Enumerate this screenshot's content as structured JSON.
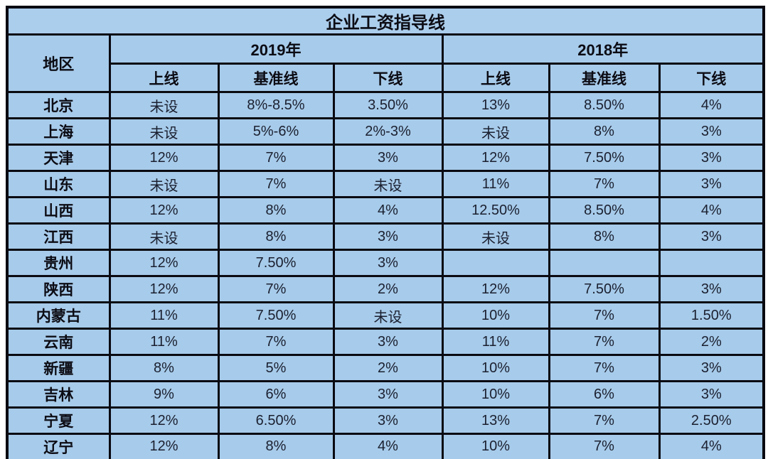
{
  "title": "企业工资指导线",
  "table": {
    "region_header": "地区",
    "year_groups": [
      {
        "year": "2019年",
        "cols": [
          "上线",
          "基准线",
          "下线"
        ]
      },
      {
        "year": "2018年",
        "cols": [
          "上线",
          "基准线",
          "下线"
        ]
      }
    ],
    "rows": [
      {
        "region": "北京",
        "y2019": [
          "未设",
          "8%-8.5%",
          "3.50%"
        ],
        "y2018": [
          "13%",
          "8.50%",
          "4%"
        ]
      },
      {
        "region": "上海",
        "y2019": [
          "未设",
          "5%-6%",
          "2%-3%"
        ],
        "y2018": [
          "未设",
          "8%",
          "3%"
        ]
      },
      {
        "region": "天津",
        "y2019": [
          "12%",
          "7%",
          "3%"
        ],
        "y2018": [
          "12%",
          "7.50%",
          "3%"
        ]
      },
      {
        "region": "山东",
        "y2019": [
          "未设",
          "7%",
          "未设"
        ],
        "y2018": [
          "11%",
          "7%",
          "3%"
        ]
      },
      {
        "region": "山西",
        "y2019": [
          "12%",
          "8%",
          "4%"
        ],
        "y2018": [
          "12.50%",
          "8.50%",
          "4%"
        ]
      },
      {
        "region": "江西",
        "y2019": [
          "未设",
          "8%",
          "3%"
        ],
        "y2018": [
          "未设",
          "8%",
          "3%"
        ]
      },
      {
        "region": "贵州",
        "y2019": [
          "12%",
          "7.50%",
          "3%"
        ],
        "y2018": [
          "",
          "",
          ""
        ]
      },
      {
        "region": "陕西",
        "y2019": [
          "12%",
          "7%",
          "2%"
        ],
        "y2018": [
          "12%",
          "7.50%",
          "3%"
        ]
      },
      {
        "region": "内蒙古",
        "y2019": [
          "11%",
          "7.50%",
          "未设"
        ],
        "y2018": [
          "10%",
          "7%",
          "1.50%"
        ]
      },
      {
        "region": "云南",
        "y2019": [
          "11%",
          "7%",
          "3%"
        ],
        "y2018": [
          "11%",
          "7%",
          "2%"
        ]
      },
      {
        "region": "新疆",
        "y2019": [
          "8%",
          "5%",
          "2%"
        ],
        "y2018": [
          "10%",
          "7%",
          "3%"
        ]
      },
      {
        "region": "吉林",
        "y2019": [
          "9%",
          "6%",
          "3%"
        ],
        "y2018": [
          "10%",
          "6%",
          "3%"
        ]
      },
      {
        "region": "宁夏",
        "y2019": [
          "12%",
          "6.50%",
          "3%"
        ],
        "y2018": [
          "13%",
          "7%",
          "2.50%"
        ]
      },
      {
        "region": "辽宁",
        "y2019": [
          "12%",
          "8%",
          "4%"
        ],
        "y2018": [
          "10%",
          "7%",
          "4%"
        ]
      }
    ]
  },
  "colors": {
    "cell_background": "#a7cbea",
    "border": "#0a0a12",
    "text": "#0c0c14",
    "page_background": "#ffffff"
  },
  "chart_data": {
    "type": "table",
    "title": "企业工资指导线",
    "columns": [
      "地区",
      "2019年 上线",
      "2019年 基准线",
      "2019年 下线",
      "2018年 上线",
      "2018年 基准线",
      "2018年 下线"
    ],
    "rows": [
      [
        "北京",
        "未设",
        "8%-8.5%",
        "3.50%",
        "13%",
        "8.50%",
        "4%"
      ],
      [
        "上海",
        "未设",
        "5%-6%",
        "2%-3%",
        "未设",
        "8%",
        "3%"
      ],
      [
        "天津",
        "12%",
        "7%",
        "3%",
        "12%",
        "7.50%",
        "3%"
      ],
      [
        "山东",
        "未设",
        "7%",
        "未设",
        "11%",
        "7%",
        "3%"
      ],
      [
        "山西",
        "12%",
        "8%",
        "4%",
        "12.50%",
        "8.50%",
        "4%"
      ],
      [
        "江西",
        "未设",
        "8%",
        "3%",
        "未设",
        "8%",
        "3%"
      ],
      [
        "贵州",
        "12%",
        "7.50%",
        "3%",
        "",
        "",
        ""
      ],
      [
        "陕西",
        "12%",
        "7%",
        "2%",
        "12%",
        "7.50%",
        "3%"
      ],
      [
        "内蒙古",
        "11%",
        "7.50%",
        "未设",
        "10%",
        "7%",
        "1.50%"
      ],
      [
        "云南",
        "11%",
        "7%",
        "3%",
        "11%",
        "7%",
        "2%"
      ],
      [
        "新疆",
        "8%",
        "5%",
        "2%",
        "10%",
        "7%",
        "3%"
      ],
      [
        "吉林",
        "9%",
        "6%",
        "3%",
        "10%",
        "6%",
        "3%"
      ],
      [
        "宁夏",
        "12%",
        "6.50%",
        "3%",
        "13%",
        "7%",
        "2.50%"
      ],
      [
        "辽宁",
        "12%",
        "8%",
        "4%",
        "10%",
        "7%",
        "4%"
      ]
    ]
  }
}
